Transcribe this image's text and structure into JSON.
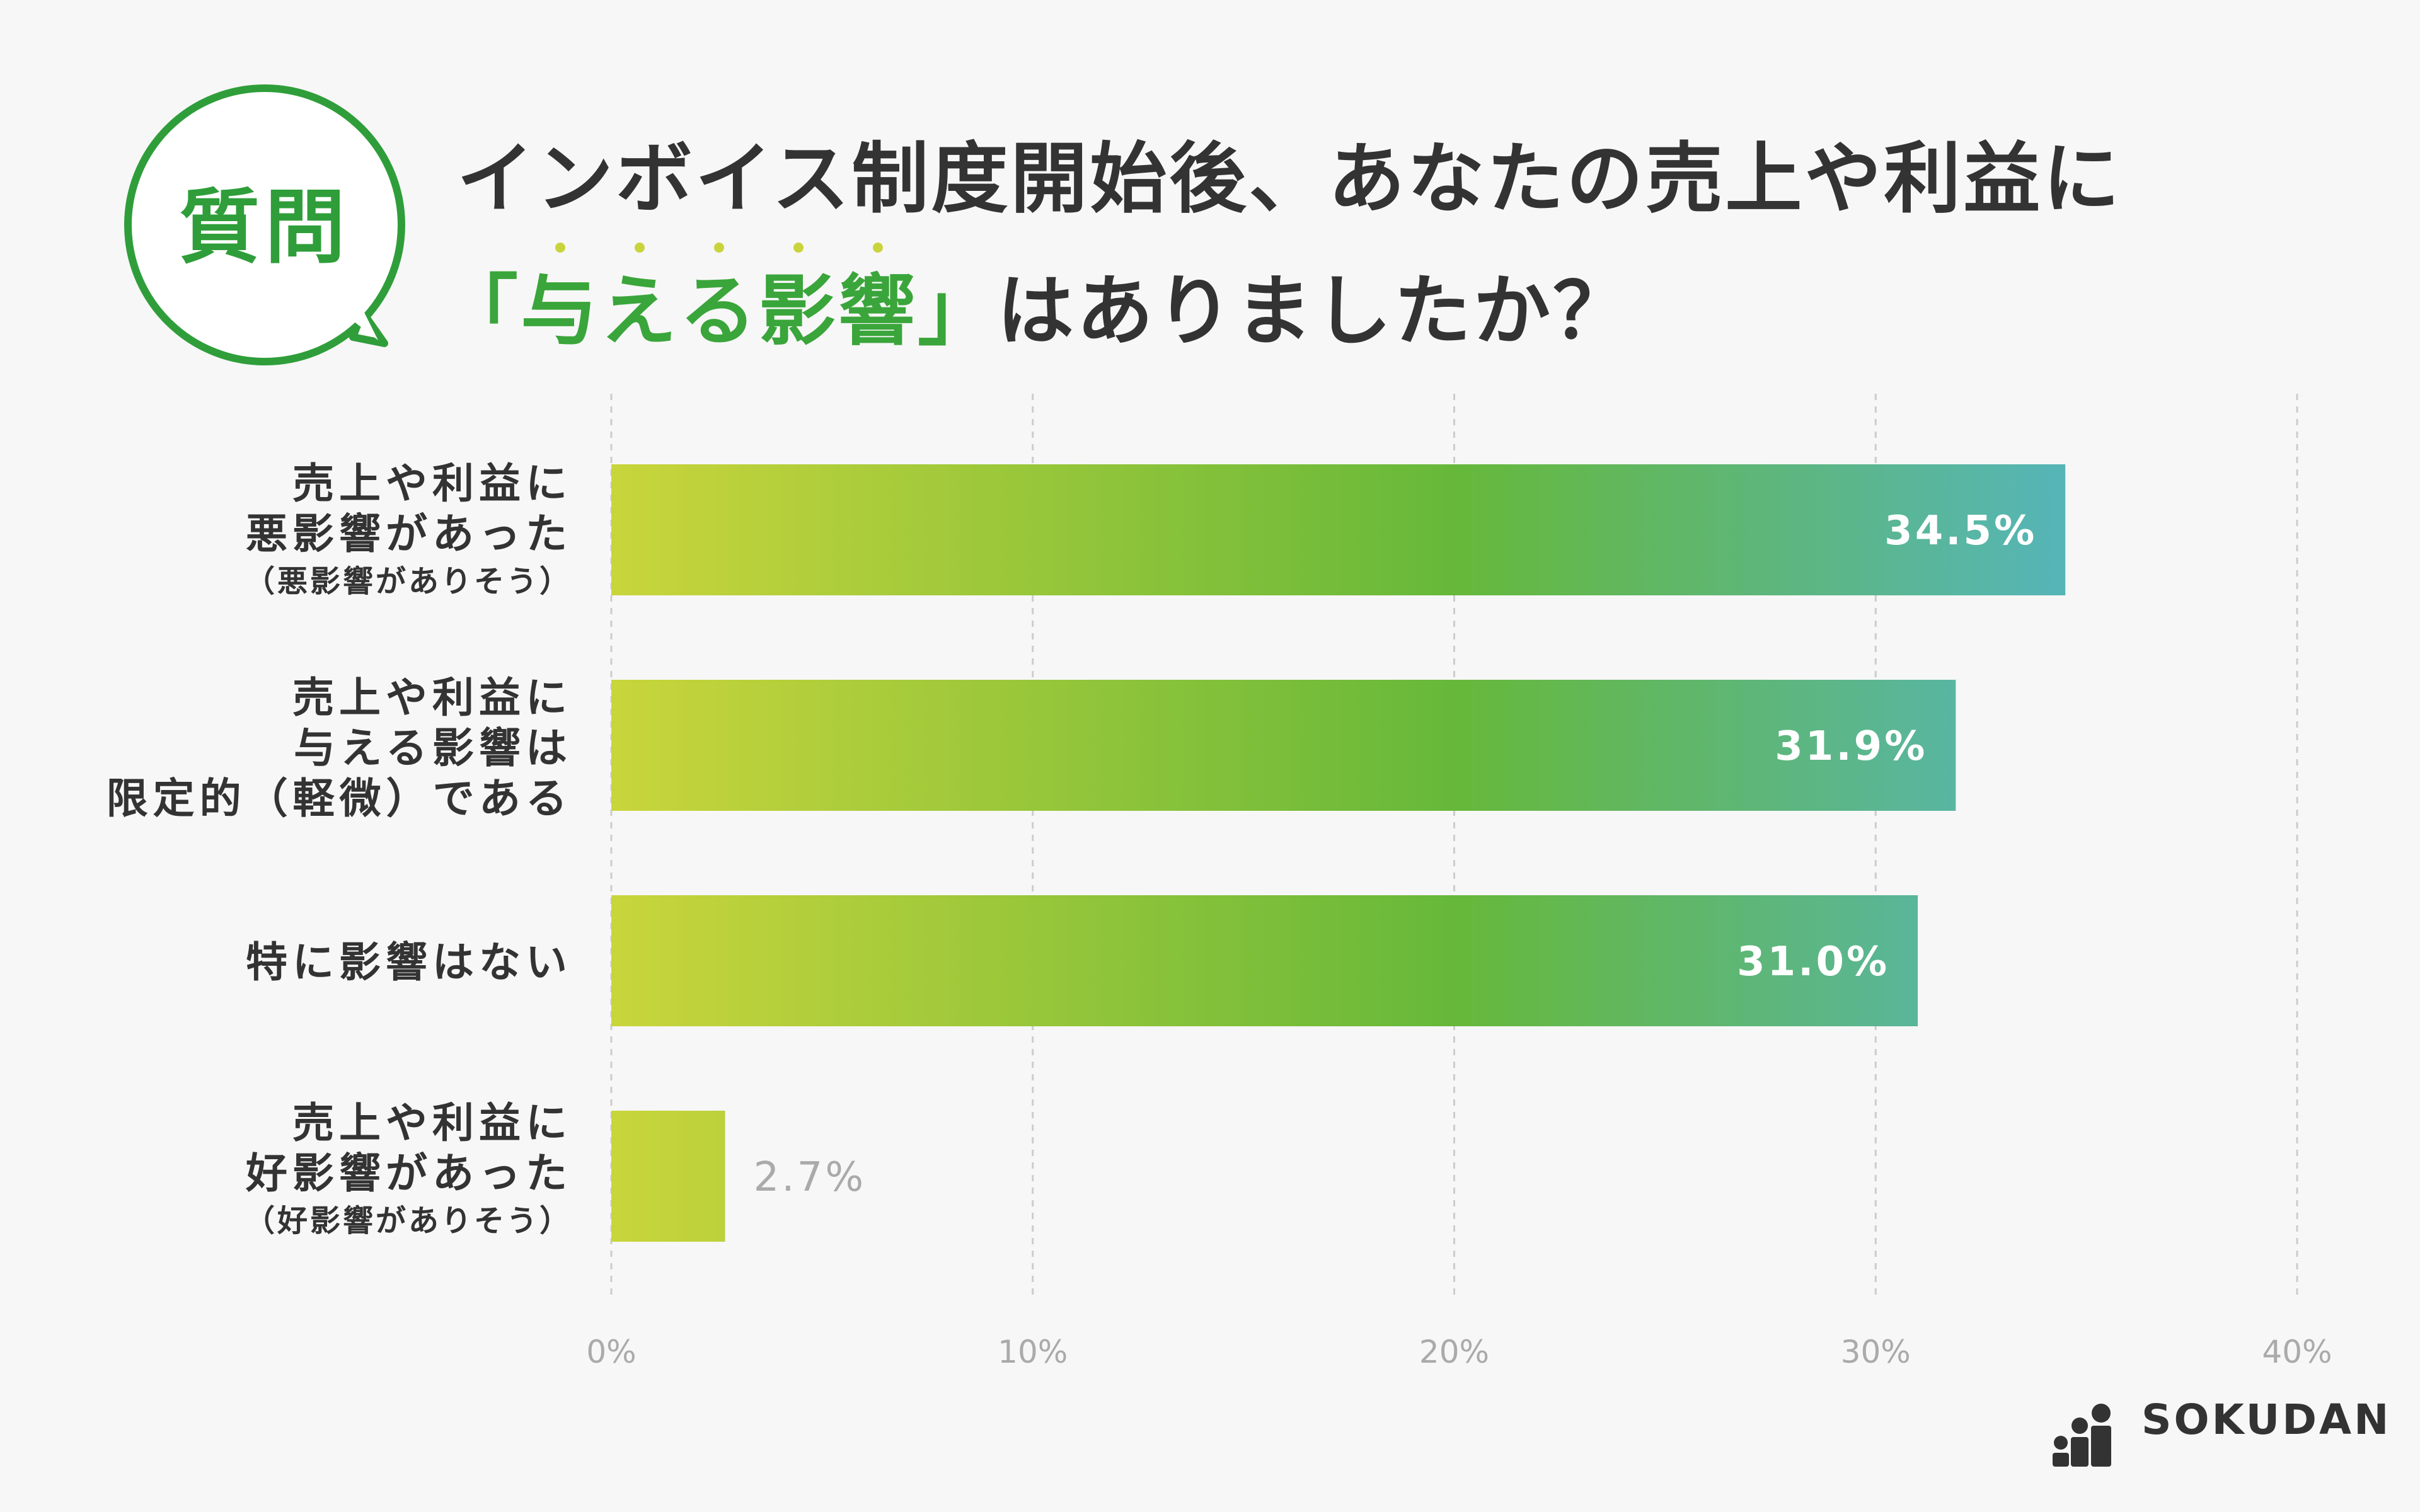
{
  "badge": {
    "text": "質問"
  },
  "title": {
    "line1": "インボイス制度開始後、あなたの売上や利益に",
    "line2_highlight_open": "「",
    "line2_highlight_chars": [
      "与",
      "え",
      "る",
      "影",
      "響"
    ],
    "line2_highlight_close": "」",
    "line2_rest": "はありましたか？"
  },
  "colors": {
    "accent": "#2f9e3a",
    "gradient": [
      "#c9d53b",
      "#66b83a",
      "#4fb4e8"
    ],
    "axis_label": "#aaaaaa",
    "outside_label": "#aaaaaa",
    "grid": "#cccccc"
  },
  "chart_data": {
    "type": "bar",
    "orientation": "horizontal",
    "categories": [
      {
        "lines": [
          "売上や利益に",
          "悪影響があった"
        ],
        "sub": "（悪影響がありそう）"
      },
      {
        "lines": [
          "売上や利益に",
          "与える影響は",
          "限定的（軽微）である"
        ],
        "sub": ""
      },
      {
        "lines": [
          "特に影響はない"
        ],
        "sub": ""
      },
      {
        "lines": [
          "売上や利益に",
          "好影響があった"
        ],
        "sub": "（好影響がありそう）"
      }
    ],
    "values": [
      34.5,
      31.9,
      31.0,
      2.7
    ],
    "value_labels": [
      "34.5%",
      "31.9%",
      "31.0%",
      "2.7%"
    ],
    "xlim": [
      0,
      40
    ],
    "xticks": [
      0,
      10,
      20,
      30,
      40
    ],
    "xtick_labels": [
      "0%",
      "10%",
      "20%",
      "30%",
      "40%"
    ],
    "grid": true
  },
  "logo": {
    "text": "SOKUDAN",
    "icon": "people-bars-icon"
  }
}
